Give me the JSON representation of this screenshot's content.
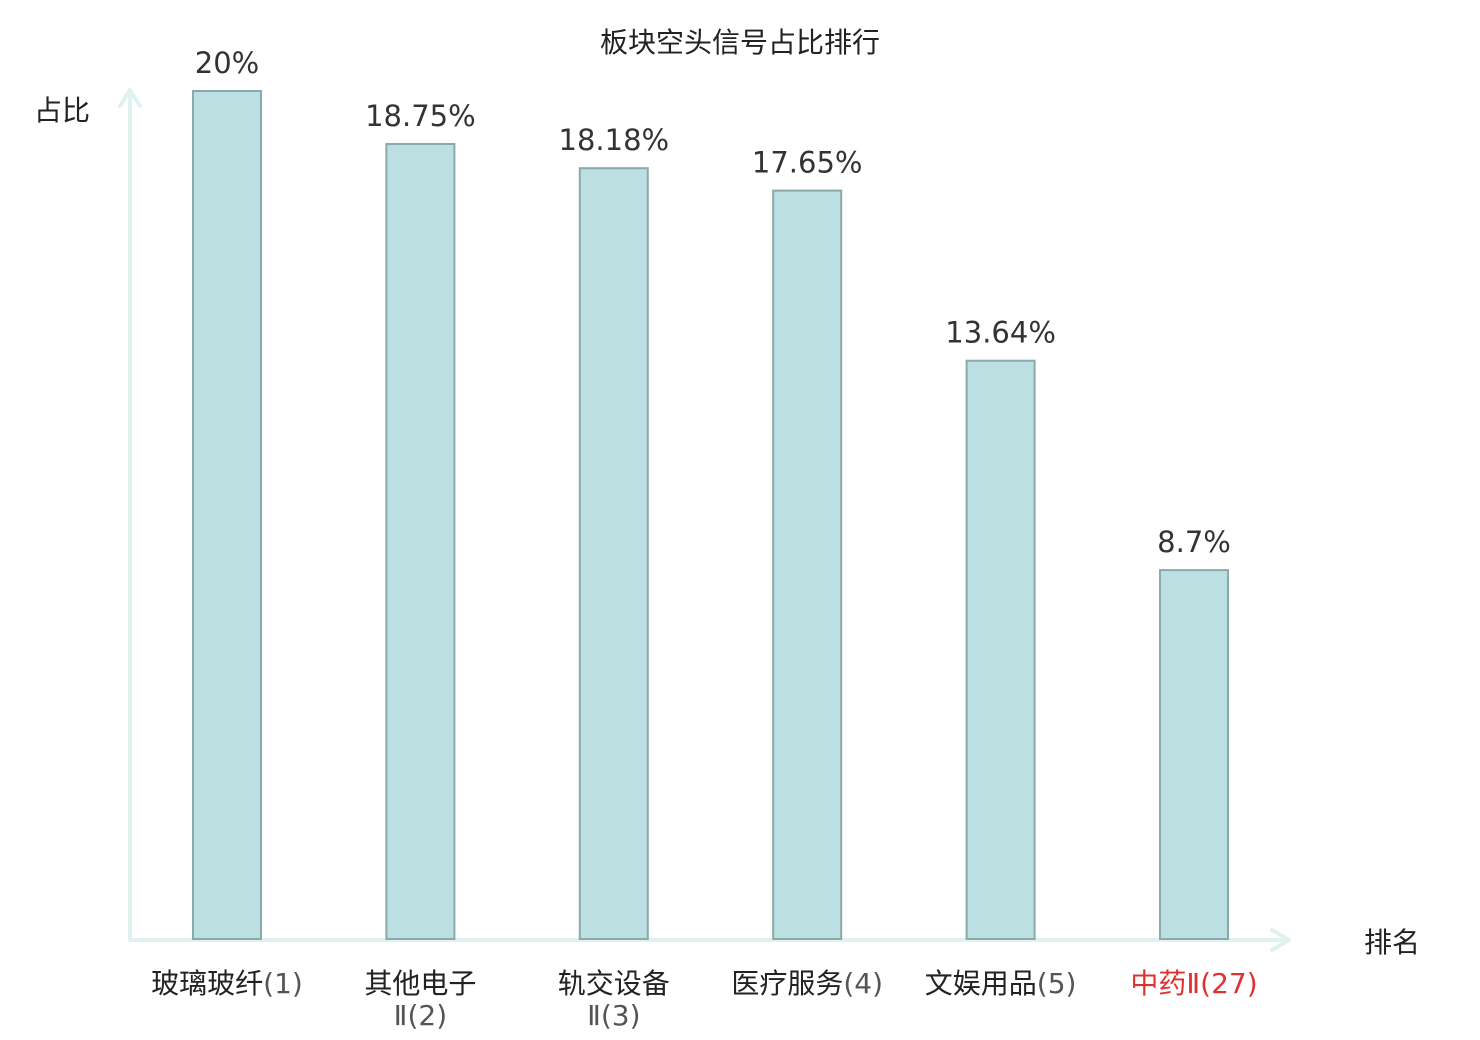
{
  "chart_data": {
    "type": "bar",
    "title": "板块空头信号占比排行",
    "ylabel": "占比",
    "xlabel": "排名",
    "ylim": [
      0,
      20
    ],
    "grid": false,
    "legend": "none",
    "categories": [
      {
        "name": "玻璃玻纤",
        "rank": "(1)",
        "highlight": false
      },
      {
        "name": "其他电子",
        "rank": "Ⅱ(2)",
        "highlight": false
      },
      {
        "name": "轨交设备",
        "rank": "Ⅱ(3)",
        "highlight": false
      },
      {
        "name": "医疗服务",
        "rank": "(4)",
        "highlight": false
      },
      {
        "name": "文娱用品",
        "rank": "(5)",
        "highlight": false
      },
      {
        "name": "中药",
        "rank": "Ⅱ(27)",
        "highlight": true
      }
    ],
    "values": [
      20,
      18.75,
      18.18,
      17.65,
      13.64,
      8.7
    ],
    "value_labels": [
      "20%",
      "18.75%",
      "18.18%",
      "17.65%",
      "13.64%",
      "8.7%"
    ],
    "colors": {
      "bar_fill": "#bce0e2",
      "bar_stroke": "#8aa9ab",
      "axis": "#e0f2ef",
      "highlight": "#e03030"
    }
  }
}
